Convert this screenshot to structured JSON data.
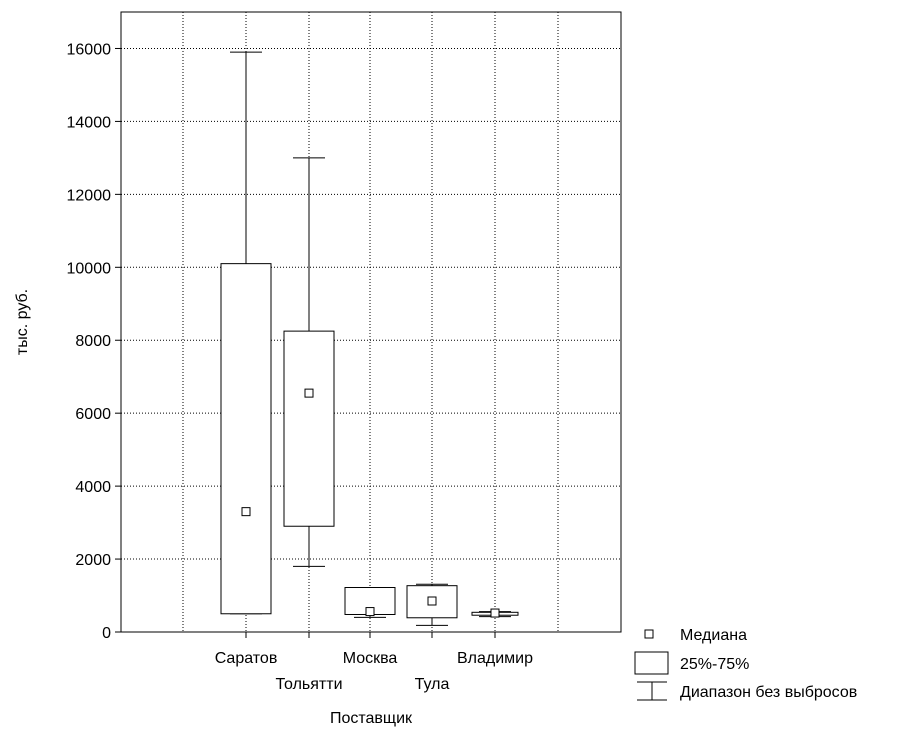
{
  "chart_data": {
    "type": "boxplot",
    "xlabel": "Поставщик",
    "ylabel": "тыс. руб.",
    "ylim": [
      0,
      17000
    ],
    "yticks": [
      0,
      2000,
      4000,
      6000,
      8000,
      10000,
      12000,
      14000,
      16000
    ],
    "grid": true,
    "legend_position": "bottom-right",
    "categories": [
      "Саратов",
      "Тольятти",
      "Москва",
      "Тула",
      "Владимир"
    ],
    "boxes": [
      {
        "name": "Саратов",
        "min": 500,
        "q1": 500,
        "median": 3300,
        "q3": 10100,
        "max": 15900
      },
      {
        "name": "Тольятти",
        "min": 1800,
        "q1": 2900,
        "median": 6550,
        "q3": 8250,
        "max": 13000
      },
      {
        "name": "Москва",
        "min": 400,
        "q1": 480,
        "median": 560,
        "q3": 1220,
        "max": 1220
      },
      {
        "name": "Тула",
        "min": 180,
        "q1": 390,
        "median": 850,
        "q3": 1270,
        "max": 1310
      },
      {
        "name": "Владимир",
        "min": 420,
        "q1": 460,
        "median": 520,
        "q3": 540,
        "max": 560
      }
    ],
    "legend": {
      "median": "Медиана",
      "box": "25%-75%",
      "range": "Диапазон без выбросов"
    }
  }
}
